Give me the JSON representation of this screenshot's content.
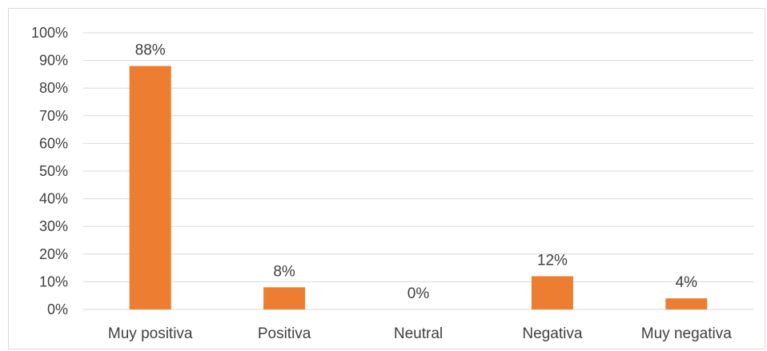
{
  "chart_data": {
    "type": "bar",
    "title": "",
    "xlabel": "",
    "ylabel": "",
    "categories": [
      "Muy positiva",
      "Positiva",
      "Neutral",
      "Negativa",
      "Muy negativa"
    ],
    "values": [
      88,
      8,
      0,
      12,
      4
    ],
    "data_labels": [
      "88%",
      "8%",
      "0%",
      "12%",
      "4%"
    ],
    "ylim": [
      0,
      100
    ],
    "yticks": [
      0,
      10,
      20,
      30,
      40,
      50,
      60,
      70,
      80,
      90,
      100
    ],
    "ytick_labels": [
      "0%",
      "10%",
      "20%",
      "30%",
      "40%",
      "50%",
      "60%",
      "70%",
      "80%",
      "90%",
      "100%"
    ],
    "grid": true,
    "legend": "none",
    "bar_color": "#ED7D31",
    "grid_color": "#d9d9d9"
  }
}
